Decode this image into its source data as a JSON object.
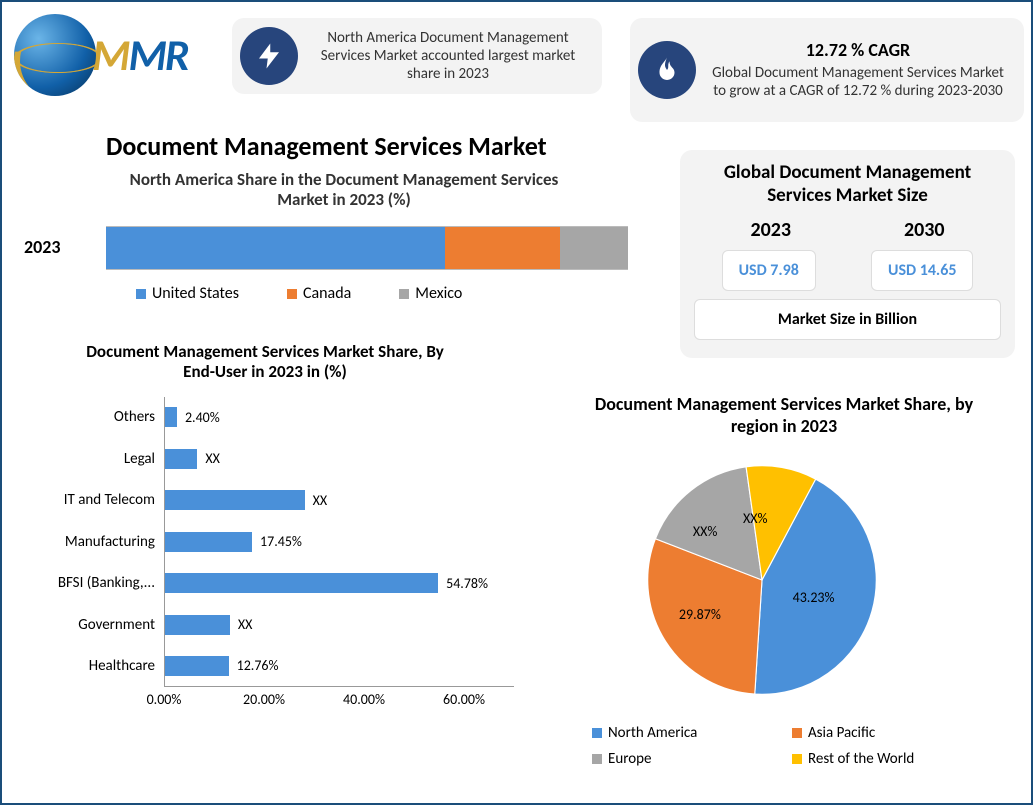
{
  "logo": {
    "text_1": "M",
    "text_2": "MR"
  },
  "card1": {
    "text": "North America Document Management Services Market accounted largest market share in 2023"
  },
  "card2": {
    "title": "12.72 % CAGR",
    "text": "Global Document Management Services Market to grow at a CAGR of 12.72 % during 2023-2030"
  },
  "main_title": "Document Management Services Market",
  "stacked": {
    "title": "North America Share in the Document Management Services Market in 2023 (%)",
    "year_label": "2023",
    "type": "stacked-bar-horizontal",
    "segments": [
      {
        "label": "United States",
        "value": 65,
        "color": "#4a90d9"
      },
      {
        "label": "Canada",
        "value": 22,
        "color": "#ed7d31"
      },
      {
        "label": "Mexico",
        "value": 13,
        "color": "#a6a6a6"
      }
    ]
  },
  "size_panel": {
    "title": "Global Document Management Services Market Size",
    "unit": "Market Size in Billion",
    "items": [
      {
        "year": "2023",
        "value": "USD 7.98"
      },
      {
        "year": "2030",
        "value": "USD 14.65"
      }
    ],
    "value_color": "#4a90d9"
  },
  "hbar": {
    "title": "Document Management Services Market Share, By End-User in 2023 in (%)",
    "type": "bar-horizontal",
    "bar_color": "#4a90d9",
    "xmax": 70,
    "xticks": [
      "0.00%",
      "20.00%",
      "40.00%",
      "60.00%"
    ],
    "xtick_vals": [
      0,
      20,
      40,
      60
    ],
    "rows": [
      {
        "label": "Others",
        "value": 2.4,
        "display": "2.40%"
      },
      {
        "label": "Legal",
        "value": 6.5,
        "display": "XX"
      },
      {
        "label": "IT and Telecom",
        "value": 28.0,
        "display": "XX"
      },
      {
        "label": "Manufacturing",
        "value": 17.45,
        "display": "17.45%"
      },
      {
        "label": "BFSI (Banking,...",
        "value": 54.78,
        "display": "54.78%"
      },
      {
        "label": "Government",
        "value": 13.0,
        "display": "XX"
      },
      {
        "label": "Healthcare",
        "value": 12.76,
        "display": "12.76%"
      }
    ]
  },
  "pie": {
    "title": "Document Management Services Market Share, by region in 2023",
    "type": "pie",
    "slices": [
      {
        "label": "North America",
        "value": 43.23,
        "display": "43.23%",
        "color": "#4a90d9"
      },
      {
        "label": "Asia Pacific",
        "value": 29.87,
        "display": "29.87%",
        "color": "#ed7d31"
      },
      {
        "label": "Europe",
        "value": 16.9,
        "display": "XX%",
        "color": "#a6a6a6"
      },
      {
        "label": "Rest of the World",
        "value": 10.0,
        "display": "XX%",
        "color": "#ffc000"
      }
    ],
    "rotation_deg": -62
  },
  "colors": {
    "background": "#ffffff",
    "border": "#1a4d7a",
    "card_bg": "#f3f3f3",
    "icon_bg": "#27457c",
    "text": "#333333"
  },
  "fonts": {
    "main_title_pt": 26,
    "subtitle_pt": 17,
    "body_pt": 15,
    "small_pt": 14
  }
}
